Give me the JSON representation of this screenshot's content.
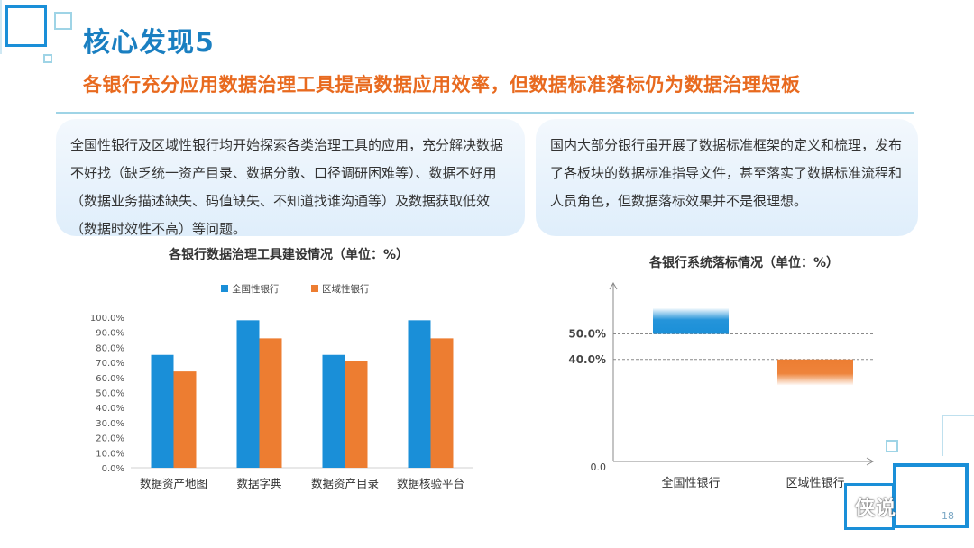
{
  "heading": {
    "title": "核心发现5",
    "subtitle": "各银行充分应用数据治理工具提高数据应用效率，但数据标准落标仍为数据治理短板"
  },
  "cards": {
    "left": "全国性银行及区域性银行均开始探索各类治理工具的应用，充分解决数据不好找（缺乏统一资产目录、数据分散、口径调研困难等）、数据不好用（数据业务描述缺失、码值缺失、不知道找谁沟通等）及数据获取低效（数据时效性不高）等问题。",
    "right": "国内大部分银行虽开展了数据标准框架的定义和梳理，发布了各板块的数据标准指导文件，甚至落实了数据标准流程和人员角色，但数据落标效果并不是很理想。"
  },
  "colors": {
    "blue": "#1a8fd8",
    "orange": "#ed7d31",
    "accent": "#1a7fc1"
  },
  "chart_data": [
    {
      "type": "bar",
      "title": "各银行数据治理工具建设情况（单位：%）",
      "categories": [
        "数据资产地图",
        "数据字典",
        "数据资产目录",
        "数据核验平台"
      ],
      "series": [
        {
          "name": "全国性银行",
          "values": [
            75,
            98,
            75,
            98
          ]
        },
        {
          "name": "区域性银行",
          "values": [
            64,
            86,
            71,
            86
          ]
        }
      ],
      "yticks": [
        "0.0%",
        "10.0%",
        "20.0%",
        "30.0%",
        "40.0%",
        "50.0%",
        "60.0%",
        "70.0%",
        "80.0%",
        "90.0%",
        "100.0%"
      ],
      "ylim": [
        0,
        100
      ],
      "legend": "top"
    },
    {
      "type": "bar",
      "title": "各银行系统落标情况（单位：%）",
      "categories": [
        "全国性银行",
        "区域性银行"
      ],
      "reference_lines": [
        {
          "value": 50,
          "label": "50.0%"
        },
        {
          "value": 40,
          "label": "40.0%"
        }
      ],
      "bars": [
        {
          "name": "全国性银行",
          "from": 50,
          "to": 60
        },
        {
          "name": "区域性银行",
          "from": 40,
          "to": 30
        }
      ],
      "origin_label": "0.0",
      "ylim": [
        0,
        65
      ]
    }
  ],
  "footer": {
    "watermark": "侠说",
    "page": "18"
  }
}
